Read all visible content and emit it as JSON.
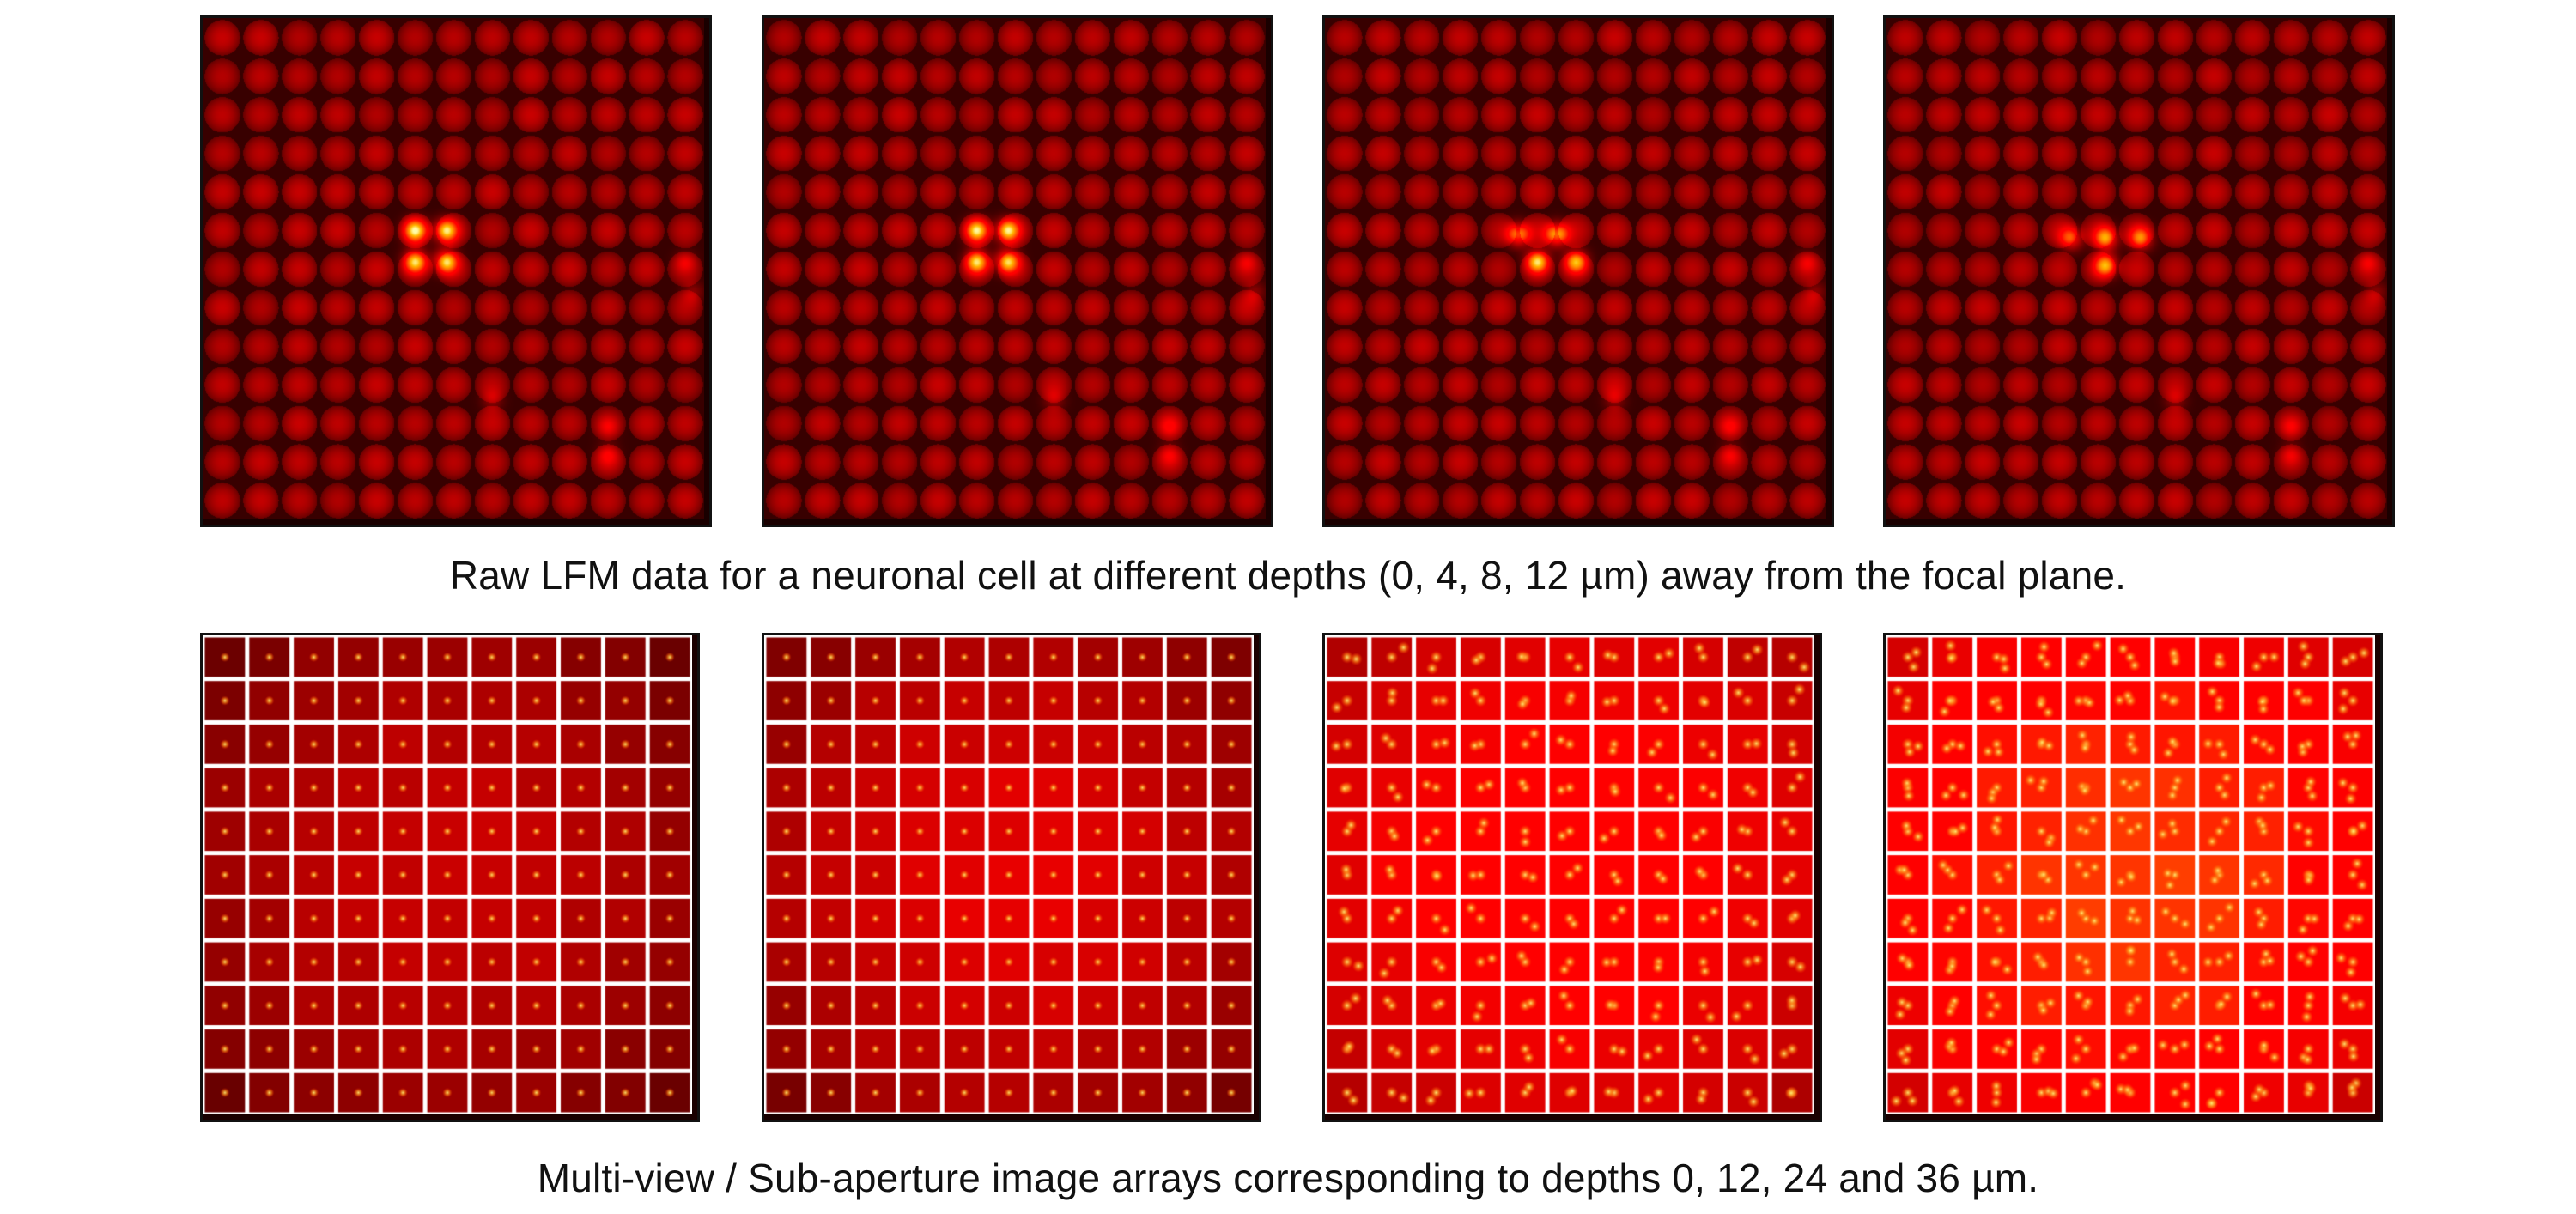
{
  "figure": {
    "raw_row": {
      "caption": "Raw LFM data for a neuronal cell at different depths (0, 4, 8, 12 µm) away from the focal plane.",
      "grid": [
        13,
        13
      ],
      "panels": [
        {
          "depth_um": 0,
          "description": "raw LFM lenslet image",
          "colormap": "hot-red"
        },
        {
          "depth_um": 4,
          "description": "raw LFM lenslet image",
          "colormap": "hot-red"
        },
        {
          "depth_um": 8,
          "description": "raw LFM lenslet image",
          "colormap": "hot-red"
        },
        {
          "depth_um": 12,
          "description": "raw LFM lenslet image",
          "colormap": "hot-red"
        }
      ]
    },
    "subaperture_row": {
      "caption": "Multi-view / Sub-aperture image arrays corresponding to depths 0, 12, 24 and 36 µm.",
      "grid": [
        11,
        11
      ],
      "panels": [
        {
          "depth_um": 0,
          "description": "sub-aperture image array",
          "colormap": "hot-red"
        },
        {
          "depth_um": 12,
          "description": "sub-aperture image array",
          "colormap": "hot-red"
        },
        {
          "depth_um": 24,
          "description": "sub-aperture image array",
          "colormap": "hot-red"
        },
        {
          "depth_um": 36,
          "description": "sub-aperture image array",
          "colormap": "hot-red"
        }
      ]
    }
  }
}
